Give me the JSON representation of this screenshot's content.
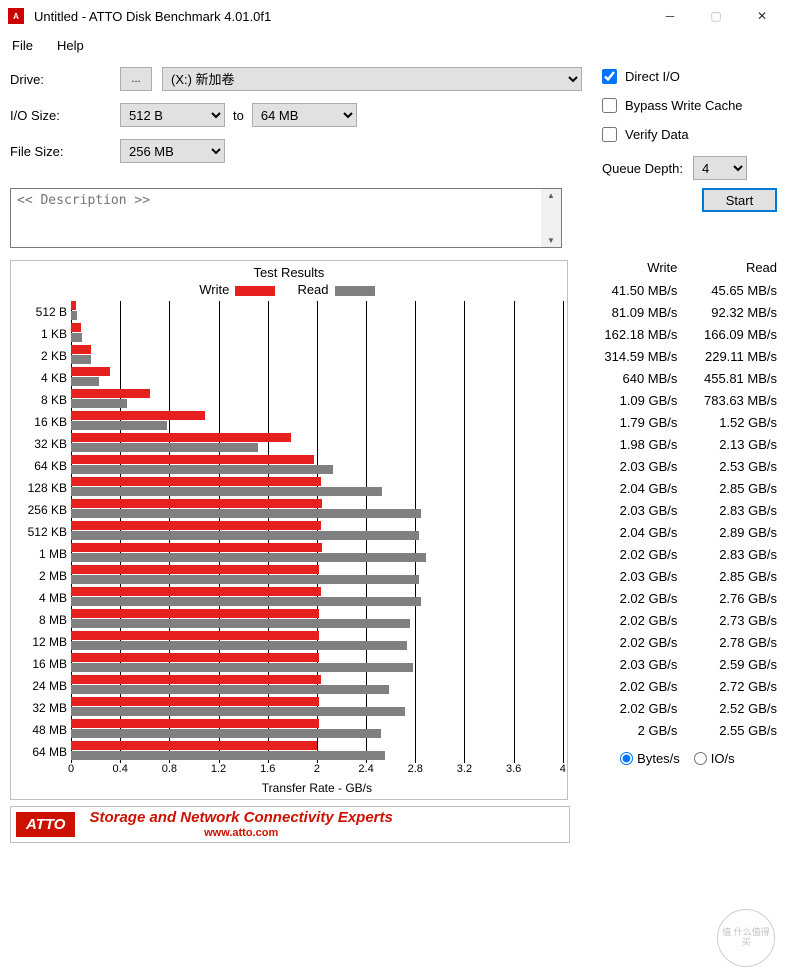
{
  "titlebar": {
    "title": "Untitled - ATTO Disk Benchmark 4.01.0f1"
  },
  "menu": {
    "file": "File",
    "help": "Help"
  },
  "form": {
    "drive_label": "Drive:",
    "drive_btn": "...",
    "drive_value": "(X:) 新加卷",
    "io_label": "I/O Size:",
    "io_from": "512 B",
    "to_label": "to",
    "io_to": "64 MB",
    "fs_label": "File Size:",
    "fs_value": "256 MB",
    "direct_io": "Direct I/O",
    "direct_io_checked": true,
    "bypass": "Bypass Write Cache",
    "bypass_checked": false,
    "verify": "Verify Data",
    "verify_checked": false,
    "qd_label": "Queue Depth:",
    "qd_value": "4",
    "desc_placeholder": "<< Description >>",
    "start": "Start"
  },
  "chart": {
    "title": "Test Results",
    "legend_write": "Write",
    "legend_read": "Read",
    "write_color": "#e6201f",
    "read_color": "#808080",
    "x_label": "Transfer Rate - GB/s",
    "x_max": 4.0,
    "x_ticks": [
      "0",
      "0.4",
      "0.8",
      "1.2",
      "1.6",
      "2",
      "2.4",
      "2.8",
      "3.2",
      "3.6",
      "4"
    ],
    "rows": [
      {
        "label": "512 B",
        "write_gbps": 0.0415,
        "read_gbps": 0.04565,
        "write_txt": "41.50 MB/s",
        "read_txt": "45.65 MB/s"
      },
      {
        "label": "1 KB",
        "write_gbps": 0.08109,
        "read_gbps": 0.09232,
        "write_txt": "81.09 MB/s",
        "read_txt": "92.32 MB/s"
      },
      {
        "label": "2 KB",
        "write_gbps": 0.16218,
        "read_gbps": 0.16609,
        "write_txt": "162.18 MB/s",
        "read_txt": "166.09 MB/s"
      },
      {
        "label": "4 KB",
        "write_gbps": 0.31459,
        "read_gbps": 0.22911,
        "write_txt": "314.59 MB/s",
        "read_txt": "229.11 MB/s"
      },
      {
        "label": "8 KB",
        "write_gbps": 0.64,
        "read_gbps": 0.45581,
        "write_txt": "640 MB/s",
        "read_txt": "455.81 MB/s"
      },
      {
        "label": "16 KB",
        "write_gbps": 1.09,
        "read_gbps": 0.78363,
        "write_txt": "1.09 GB/s",
        "read_txt": "783.63 MB/s"
      },
      {
        "label": "32 KB",
        "write_gbps": 1.79,
        "read_gbps": 1.52,
        "write_txt": "1.79 GB/s",
        "read_txt": "1.52 GB/s"
      },
      {
        "label": "64 KB",
        "write_gbps": 1.98,
        "read_gbps": 2.13,
        "write_txt": "1.98 GB/s",
        "read_txt": "2.13 GB/s"
      },
      {
        "label": "128 KB",
        "write_gbps": 2.03,
        "read_gbps": 2.53,
        "write_txt": "2.03 GB/s",
        "read_txt": "2.53 GB/s"
      },
      {
        "label": "256 KB",
        "write_gbps": 2.04,
        "read_gbps": 2.85,
        "write_txt": "2.04 GB/s",
        "read_txt": "2.85 GB/s"
      },
      {
        "label": "512 KB",
        "write_gbps": 2.03,
        "read_gbps": 2.83,
        "write_txt": "2.03 GB/s",
        "read_txt": "2.83 GB/s"
      },
      {
        "label": "1 MB",
        "write_gbps": 2.04,
        "read_gbps": 2.89,
        "write_txt": "2.04 GB/s",
        "read_txt": "2.89 GB/s"
      },
      {
        "label": "2 MB",
        "write_gbps": 2.02,
        "read_gbps": 2.83,
        "write_txt": "2.02 GB/s",
        "read_txt": "2.83 GB/s"
      },
      {
        "label": "4 MB",
        "write_gbps": 2.03,
        "read_gbps": 2.85,
        "write_txt": "2.03 GB/s",
        "read_txt": "2.85 GB/s"
      },
      {
        "label": "8 MB",
        "write_gbps": 2.02,
        "read_gbps": 2.76,
        "write_txt": "2.02 GB/s",
        "read_txt": "2.76 GB/s"
      },
      {
        "label": "12 MB",
        "write_gbps": 2.02,
        "read_gbps": 2.73,
        "write_txt": "2.02 GB/s",
        "read_txt": "2.73 GB/s"
      },
      {
        "label": "16 MB",
        "write_gbps": 2.02,
        "read_gbps": 2.78,
        "write_txt": "2.02 GB/s",
        "read_txt": "2.78 GB/s"
      },
      {
        "label": "24 MB",
        "write_gbps": 2.03,
        "read_gbps": 2.59,
        "write_txt": "2.03 GB/s",
        "read_txt": "2.59 GB/s"
      },
      {
        "label": "32 MB",
        "write_gbps": 2.02,
        "read_gbps": 2.72,
        "write_txt": "2.02 GB/s",
        "read_txt": "2.72 GB/s"
      },
      {
        "label": "48 MB",
        "write_gbps": 2.02,
        "read_gbps": 2.52,
        "write_txt": "2.02 GB/s",
        "read_txt": "2.52 GB/s"
      },
      {
        "label": "64 MB",
        "write_gbps": 2.0,
        "read_gbps": 2.55,
        "write_txt": "2 GB/s",
        "read_txt": "2.55 GB/s"
      }
    ],
    "col_write": "Write",
    "col_read": "Read",
    "unit_bytes": "Bytes/s",
    "unit_ios": "IO/s",
    "unit_selected": "bytes"
  },
  "banner": {
    "badge": "ATTO",
    "text": "Storage and Network Connectivity Experts",
    "url": "www.atto.com"
  },
  "watermark": "值 什么值得买"
}
